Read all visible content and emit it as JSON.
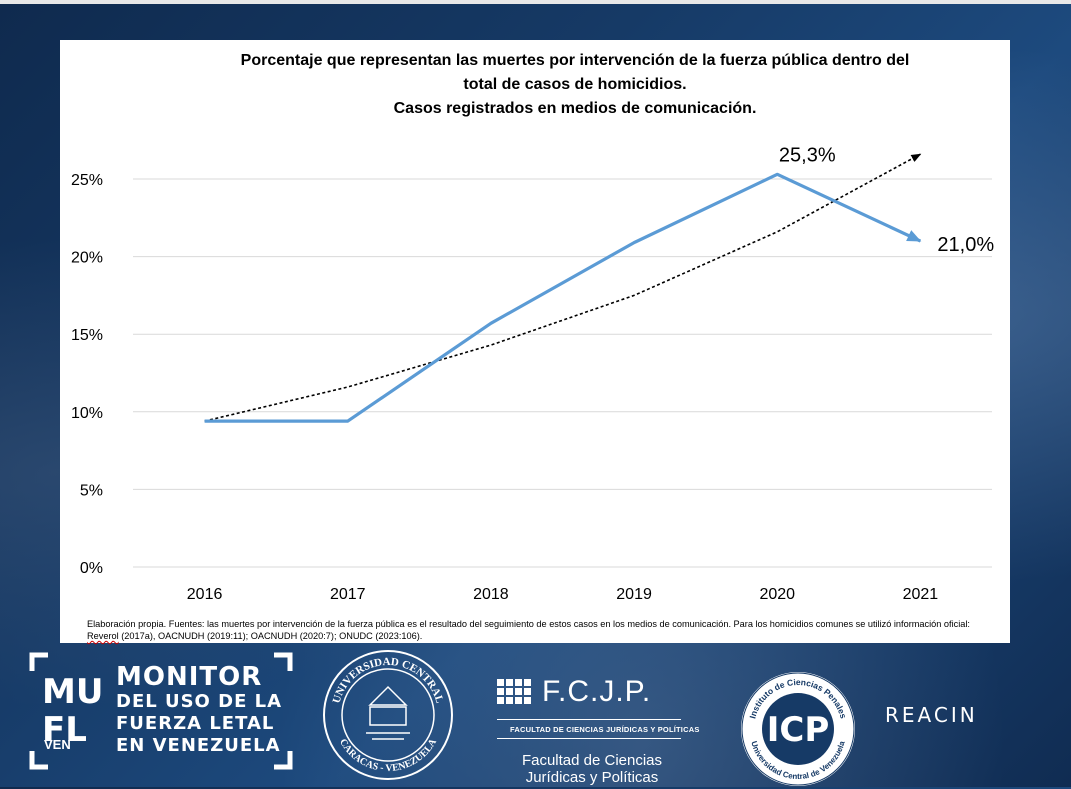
{
  "title_lines": [
    "Porcentaje que representan las muertes por intervención de la fuerza pública dentro del",
    "total de casos de homicidios.",
    "Casos registrados en medios de comunicación."
  ],
  "chart_data": {
    "type": "line",
    "title": "Porcentaje que representan las muertes por intervención de la fuerza pública dentro del total de casos de homicidios. Casos registrados en medios de comunicación.",
    "categories": [
      "2016",
      "2017",
      "2018",
      "2019",
      "2020",
      "2021"
    ],
    "series": [
      {
        "values": [
          9.4,
          9.4,
          15.7,
          20.9,
          25.3,
          21.0
        ],
        "color": "#5b9bd5",
        "style": "solid-arrow"
      },
      {
        "values": [
          9.4,
          11.6,
          14.3,
          17.5,
          21.6,
          26.6
        ],
        "color": "#000000",
        "style": "dotted-trend-arrow"
      }
    ],
    "yticks": [
      "0%",
      "5%",
      "10%",
      "15%",
      "20%",
      "25%"
    ],
    "ylim": [
      0,
      27.5
    ],
    "grid": true,
    "data_labels": [
      {
        "category": "2020",
        "text": "25,3%"
      },
      {
        "category": "2021",
        "text": "21,0%"
      }
    ]
  },
  "footnote": {
    "text_before": "Elaboración propia. Fuentes: las muertes por intervención de la fuerza pública es el resultado del seguimiento de estos casos en los medios de comunicación. Para los homicidios comunes se utilizó información oficial: ",
    "ref": "Reverol",
    "text_after": " (2017a), OACNUDH (2019:11); OACNUDH (2020:7); ONUDC (2023:106)."
  },
  "logos": {
    "monitor_letters": "MUFL",
    "monitor_small": "VEN",
    "monitor_lines": [
      "MONITOR",
      "DEL USO DE LA",
      "FUERZA LETAL",
      "EN VENEZUELA"
    ],
    "ucv_top": "UNIVERSIDAD CENTRAL",
    "ucv_bottom": "CARACAS - VENEZUELA",
    "fcjp_title": "F.C.J.P.",
    "fcjp_sub": "FACULTAD DE CIENCIAS JURÍDICAS Y POLÍTICAS",
    "fcjp_name_1": "Facultad de Ciencias",
    "fcjp_name_2": "Jurídicas y Políticas",
    "icp_top": "Instituto de Ciencias Penales",
    "icp_bottom": "Universidad Central de Venezuela",
    "icp_letters": "ICP",
    "reacin": "REACIN"
  },
  "colors": {
    "background": "#163a66",
    "series_line": "#5b9bd5",
    "trend_line": "#000000",
    "grid": "#d9d9d9"
  }
}
